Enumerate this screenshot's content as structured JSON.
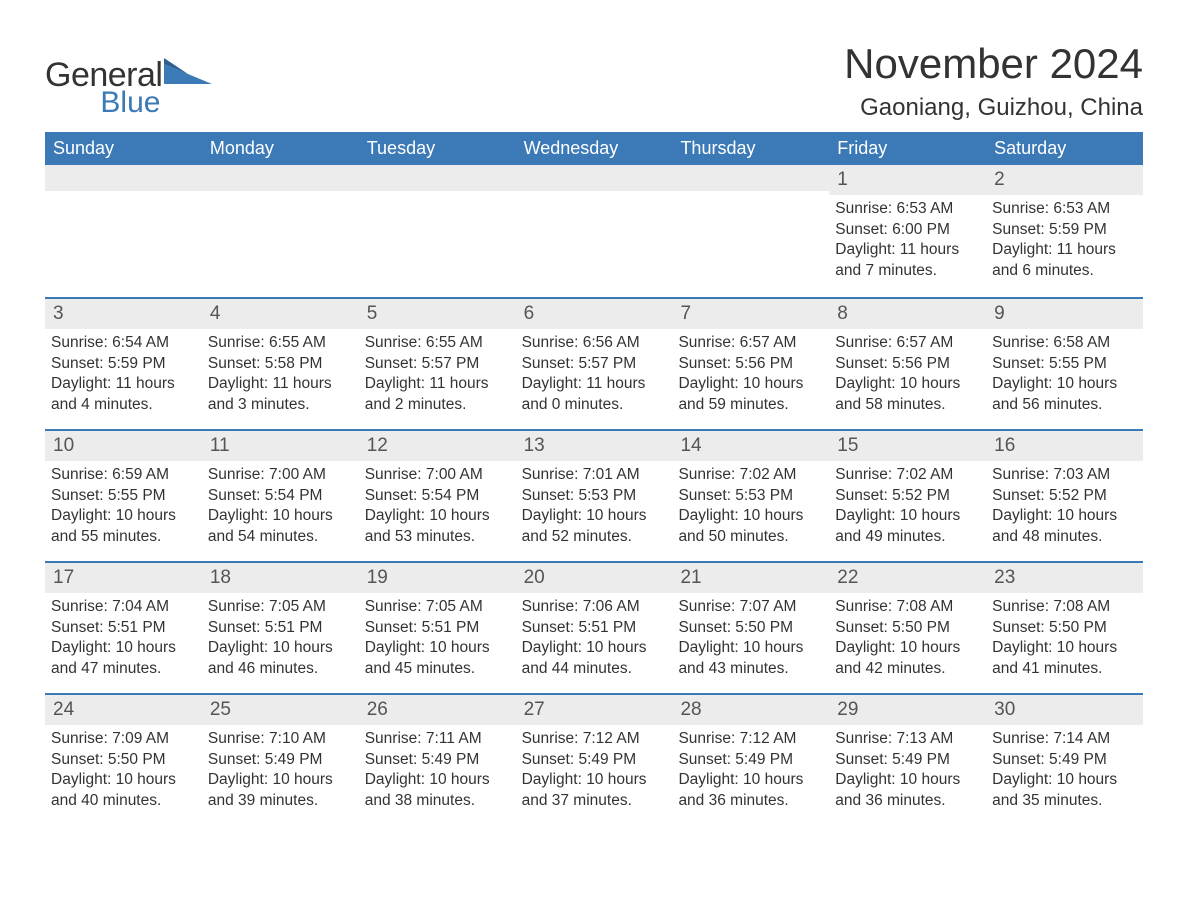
{
  "logo": {
    "word1": "General",
    "word2": "Blue"
  },
  "title": "November 2024",
  "location": "Gaoniang, Guizhou, China",
  "colors": {
    "header_bg": "#3b79b7",
    "header_text": "#ffffff",
    "daynum_bg": "#ececec",
    "body_text": "#333333",
    "logo_blue": "#3b79b7",
    "page_bg": "#ffffff"
  },
  "day_headers": [
    "Sunday",
    "Monday",
    "Tuesday",
    "Wednesday",
    "Thursday",
    "Friday",
    "Saturday"
  ],
  "weeks": [
    [
      {
        "empty": true
      },
      {
        "empty": true
      },
      {
        "empty": true
      },
      {
        "empty": true
      },
      {
        "empty": true
      },
      {
        "day": "1",
        "sunrise": "Sunrise: 6:53 AM",
        "sunset": "Sunset: 6:00 PM",
        "dl1": "Daylight: 11 hours",
        "dl2": "and 7 minutes."
      },
      {
        "day": "2",
        "sunrise": "Sunrise: 6:53 AM",
        "sunset": "Sunset: 5:59 PM",
        "dl1": "Daylight: 11 hours",
        "dl2": "and 6 minutes."
      }
    ],
    [
      {
        "day": "3",
        "sunrise": "Sunrise: 6:54 AM",
        "sunset": "Sunset: 5:59 PM",
        "dl1": "Daylight: 11 hours",
        "dl2": "and 4 minutes."
      },
      {
        "day": "4",
        "sunrise": "Sunrise: 6:55 AM",
        "sunset": "Sunset: 5:58 PM",
        "dl1": "Daylight: 11 hours",
        "dl2": "and 3 minutes."
      },
      {
        "day": "5",
        "sunrise": "Sunrise: 6:55 AM",
        "sunset": "Sunset: 5:57 PM",
        "dl1": "Daylight: 11 hours",
        "dl2": "and 2 minutes."
      },
      {
        "day": "6",
        "sunrise": "Sunrise: 6:56 AM",
        "sunset": "Sunset: 5:57 PM",
        "dl1": "Daylight: 11 hours",
        "dl2": "and 0 minutes."
      },
      {
        "day": "7",
        "sunrise": "Sunrise: 6:57 AM",
        "sunset": "Sunset: 5:56 PM",
        "dl1": "Daylight: 10 hours",
        "dl2": "and 59 minutes."
      },
      {
        "day": "8",
        "sunrise": "Sunrise: 6:57 AM",
        "sunset": "Sunset: 5:56 PM",
        "dl1": "Daylight: 10 hours",
        "dl2": "and 58 minutes."
      },
      {
        "day": "9",
        "sunrise": "Sunrise: 6:58 AM",
        "sunset": "Sunset: 5:55 PM",
        "dl1": "Daylight: 10 hours",
        "dl2": "and 56 minutes."
      }
    ],
    [
      {
        "day": "10",
        "sunrise": "Sunrise: 6:59 AM",
        "sunset": "Sunset: 5:55 PM",
        "dl1": "Daylight: 10 hours",
        "dl2": "and 55 minutes."
      },
      {
        "day": "11",
        "sunrise": "Sunrise: 7:00 AM",
        "sunset": "Sunset: 5:54 PM",
        "dl1": "Daylight: 10 hours",
        "dl2": "and 54 minutes."
      },
      {
        "day": "12",
        "sunrise": "Sunrise: 7:00 AM",
        "sunset": "Sunset: 5:54 PM",
        "dl1": "Daylight: 10 hours",
        "dl2": "and 53 minutes."
      },
      {
        "day": "13",
        "sunrise": "Sunrise: 7:01 AM",
        "sunset": "Sunset: 5:53 PM",
        "dl1": "Daylight: 10 hours",
        "dl2": "and 52 minutes."
      },
      {
        "day": "14",
        "sunrise": "Sunrise: 7:02 AM",
        "sunset": "Sunset: 5:53 PM",
        "dl1": "Daylight: 10 hours",
        "dl2": "and 50 minutes."
      },
      {
        "day": "15",
        "sunrise": "Sunrise: 7:02 AM",
        "sunset": "Sunset: 5:52 PM",
        "dl1": "Daylight: 10 hours",
        "dl2": "and 49 minutes."
      },
      {
        "day": "16",
        "sunrise": "Sunrise: 7:03 AM",
        "sunset": "Sunset: 5:52 PM",
        "dl1": "Daylight: 10 hours",
        "dl2": "and 48 minutes."
      }
    ],
    [
      {
        "day": "17",
        "sunrise": "Sunrise: 7:04 AM",
        "sunset": "Sunset: 5:51 PM",
        "dl1": "Daylight: 10 hours",
        "dl2": "and 47 minutes."
      },
      {
        "day": "18",
        "sunrise": "Sunrise: 7:05 AM",
        "sunset": "Sunset: 5:51 PM",
        "dl1": "Daylight: 10 hours",
        "dl2": "and 46 minutes."
      },
      {
        "day": "19",
        "sunrise": "Sunrise: 7:05 AM",
        "sunset": "Sunset: 5:51 PM",
        "dl1": "Daylight: 10 hours",
        "dl2": "and 45 minutes."
      },
      {
        "day": "20",
        "sunrise": "Sunrise: 7:06 AM",
        "sunset": "Sunset: 5:51 PM",
        "dl1": "Daylight: 10 hours",
        "dl2": "and 44 minutes."
      },
      {
        "day": "21",
        "sunrise": "Sunrise: 7:07 AM",
        "sunset": "Sunset: 5:50 PM",
        "dl1": "Daylight: 10 hours",
        "dl2": "and 43 minutes."
      },
      {
        "day": "22",
        "sunrise": "Sunrise: 7:08 AM",
        "sunset": "Sunset: 5:50 PM",
        "dl1": "Daylight: 10 hours",
        "dl2": "and 42 minutes."
      },
      {
        "day": "23",
        "sunrise": "Sunrise: 7:08 AM",
        "sunset": "Sunset: 5:50 PM",
        "dl1": "Daylight: 10 hours",
        "dl2": "and 41 minutes."
      }
    ],
    [
      {
        "day": "24",
        "sunrise": "Sunrise: 7:09 AM",
        "sunset": "Sunset: 5:50 PM",
        "dl1": "Daylight: 10 hours",
        "dl2": "and 40 minutes."
      },
      {
        "day": "25",
        "sunrise": "Sunrise: 7:10 AM",
        "sunset": "Sunset: 5:49 PM",
        "dl1": "Daylight: 10 hours",
        "dl2": "and 39 minutes."
      },
      {
        "day": "26",
        "sunrise": "Sunrise: 7:11 AM",
        "sunset": "Sunset: 5:49 PM",
        "dl1": "Daylight: 10 hours",
        "dl2": "and 38 minutes."
      },
      {
        "day": "27",
        "sunrise": "Sunrise: 7:12 AM",
        "sunset": "Sunset: 5:49 PM",
        "dl1": "Daylight: 10 hours",
        "dl2": "and 37 minutes."
      },
      {
        "day": "28",
        "sunrise": "Sunrise: 7:12 AM",
        "sunset": "Sunset: 5:49 PM",
        "dl1": "Daylight: 10 hours",
        "dl2": "and 36 minutes."
      },
      {
        "day": "29",
        "sunrise": "Sunrise: 7:13 AM",
        "sunset": "Sunset: 5:49 PM",
        "dl1": "Daylight: 10 hours",
        "dl2": "and 36 minutes."
      },
      {
        "day": "30",
        "sunrise": "Sunrise: 7:14 AM",
        "sunset": "Sunset: 5:49 PM",
        "dl1": "Daylight: 10 hours",
        "dl2": "and 35 minutes."
      }
    ]
  ]
}
